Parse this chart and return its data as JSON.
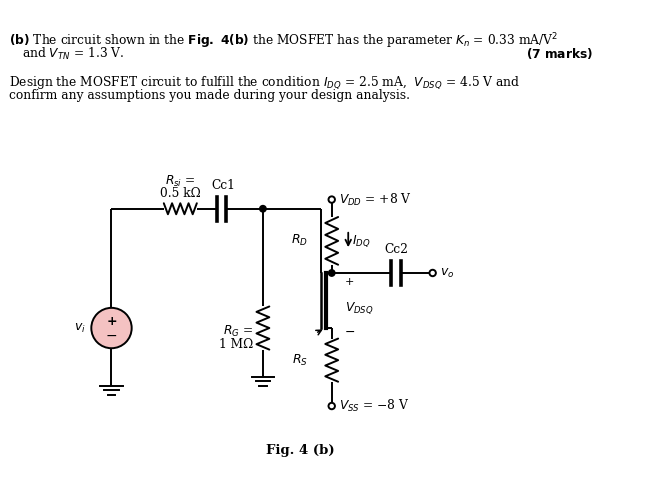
{
  "background_color": "#ffffff",
  "line_color": "#000000",
  "vi_fill": "#f4c2c2",
  "fig_label": "Fig. 4 (b)",
  "vdd_text": "$V_{DD}$ = +8 V",
  "vss_text": "$V_{SS}$ = −8 V",
  "idq_text": "$I_{DQ}$",
  "rd_text": "$R_D$",
  "rs_text": "$R_S$",
  "rg_text1": "$R_G$ =",
  "rg_text2": "1 MΩ",
  "rsi_text1": "$R_{si}$ =",
  "rsi_text2": "0.5 kΩ",
  "cc1_text": "Cc1",
  "cc2_text": "Cc2",
  "vdsq_text": "$V_{DSQ}$",
  "vi_text": "$v_i$",
  "vo_text": "$v_o$"
}
